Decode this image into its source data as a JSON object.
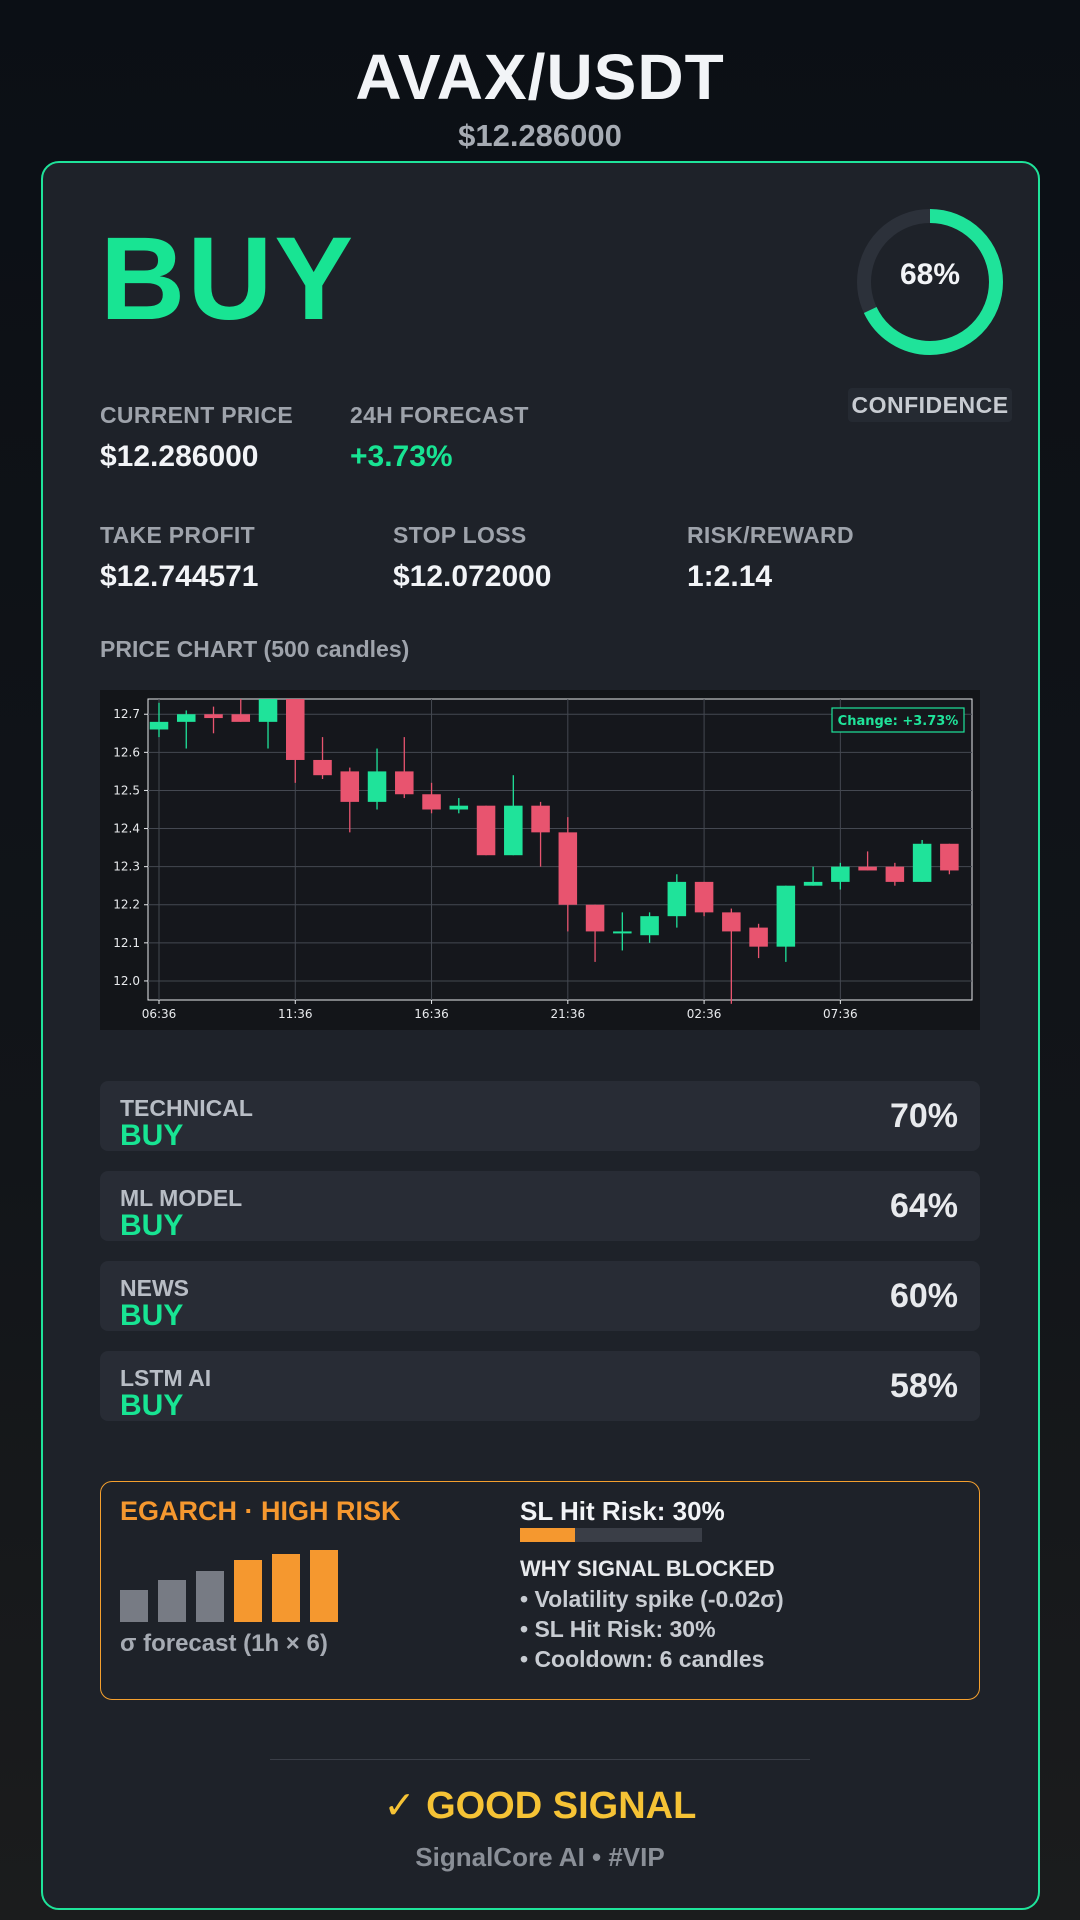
{
  "header": {
    "pair": "AVAX/USDT",
    "price": "$12.286000"
  },
  "signal": {
    "action": "BUY",
    "confidence_pct": 68,
    "confidence_text": "68%",
    "confidence_label": "CONFIDENCE"
  },
  "stats": {
    "current_price": {
      "label": "CURRENT PRICE",
      "value": "$12.286000"
    },
    "forecast": {
      "label": "24H FORECAST",
      "value": "+3.73%"
    },
    "take_profit": {
      "label": "TAKE PROFIT",
      "value": "$12.744571"
    },
    "stop_loss": {
      "label": "STOP LOSS",
      "value": "$12.072000"
    },
    "risk_reward": {
      "label": "RISK/REWARD",
      "value": "1:2.14"
    }
  },
  "chart_title": "PRICE CHART (500 candles)",
  "chart_data": {
    "type": "candlestick",
    "annotation": "Change: +3.73%",
    "ylim": [
      11.95,
      12.74
    ],
    "y_ticks": [
      12.0,
      12.1,
      12.2,
      12.3,
      12.4,
      12.5,
      12.6,
      12.7
    ],
    "x_ticks": [
      "06:36",
      "11:36",
      "16:36",
      "21:36",
      "02:36",
      "07:36"
    ],
    "grid": true,
    "up_color": "#1fe39a",
    "down_color": "#e8546f",
    "candles": [
      {
        "o": 12.66,
        "h": 12.73,
        "l": 12.64,
        "c": 12.68
      },
      {
        "o": 12.68,
        "h": 12.71,
        "l": 12.61,
        "c": 12.7
      },
      {
        "o": 12.7,
        "h": 12.72,
        "l": 12.65,
        "c": 12.69
      },
      {
        "o": 12.7,
        "h": 12.74,
        "l": 12.68,
        "c": 12.68
      },
      {
        "o": 12.68,
        "h": 12.74,
        "l": 12.61,
        "c": 12.74
      },
      {
        "o": 12.74,
        "h": 12.74,
        "l": 12.52,
        "c": 12.58
      },
      {
        "o": 12.58,
        "h": 12.64,
        "l": 12.53,
        "c": 12.54
      },
      {
        "o": 12.55,
        "h": 12.56,
        "l": 12.39,
        "c": 12.47
      },
      {
        "o": 12.47,
        "h": 12.61,
        "l": 12.45,
        "c": 12.55
      },
      {
        "o": 12.55,
        "h": 12.64,
        "l": 12.48,
        "c": 12.49
      },
      {
        "o": 12.49,
        "h": 12.52,
        "l": 12.44,
        "c": 12.45
      },
      {
        "o": 12.45,
        "h": 12.48,
        "l": 12.44,
        "c": 12.46
      },
      {
        "o": 12.46,
        "h": 12.46,
        "l": 12.33,
        "c": 12.33
      },
      {
        "o": 12.33,
        "h": 12.54,
        "l": 12.33,
        "c": 12.46
      },
      {
        "o": 12.46,
        "h": 12.47,
        "l": 12.3,
        "c": 12.39
      },
      {
        "o": 12.39,
        "h": 12.43,
        "l": 12.13,
        "c": 12.2
      },
      {
        "o": 12.2,
        "h": 12.2,
        "l": 12.05,
        "c": 12.13
      },
      {
        "o": 12.13,
        "h": 12.18,
        "l": 12.08,
        "c": 12.13
      },
      {
        "o": 12.12,
        "h": 12.18,
        "l": 12.1,
        "c": 12.17
      },
      {
        "o": 12.17,
        "h": 12.28,
        "l": 12.14,
        "c": 12.26
      },
      {
        "o": 12.26,
        "h": 12.26,
        "l": 12.17,
        "c": 12.18
      },
      {
        "o": 12.18,
        "h": 12.19,
        "l": 11.94,
        "c": 12.13
      },
      {
        "o": 12.14,
        "h": 12.15,
        "l": 12.06,
        "c": 12.09
      },
      {
        "o": 12.09,
        "h": 12.25,
        "l": 12.05,
        "c": 12.25
      },
      {
        "o": 12.25,
        "h": 12.3,
        "l": 12.25,
        "c": 12.26
      },
      {
        "o": 12.26,
        "h": 12.31,
        "l": 12.24,
        "c": 12.3
      },
      {
        "o": 12.3,
        "h": 12.34,
        "l": 12.29,
        "c": 12.29
      },
      {
        "o": 12.3,
        "h": 12.31,
        "l": 12.25,
        "c": 12.26
      },
      {
        "o": 12.26,
        "h": 12.37,
        "l": 12.26,
        "c": 12.36
      },
      {
        "o": 12.36,
        "h": 12.36,
        "l": 12.28,
        "c": 12.29
      }
    ]
  },
  "sources": [
    {
      "name": "TECHNICAL",
      "signal": "BUY",
      "pct": "70%"
    },
    {
      "name": "ML MODEL",
      "signal": "BUY",
      "pct": "64%"
    },
    {
      "name": "NEWS",
      "signal": "BUY",
      "pct": "60%"
    },
    {
      "name": "LSTM AI",
      "signal": "BUY",
      "pct": "58%"
    }
  ],
  "risk": {
    "title": "EGARCH · HIGH RISK",
    "sigma_bars": [
      0.45,
      0.59,
      0.71,
      0.86,
      0.95,
      1.0
    ],
    "sigma_high_from": 3,
    "sigma_label": "σ forecast (1h × 6)",
    "sl_hit_text": "SL Hit Risk: 30%",
    "sl_hit_pct": 30,
    "why_title": "WHY SIGNAL BLOCKED",
    "why_items": [
      "• Volatility spike (-0.02σ)",
      "• SL Hit Risk: 30%",
      "• Cooldown: 6 candles"
    ]
  },
  "verdict": {
    "icon": "check-icon",
    "text": "✓ GOOD SIGNAL"
  },
  "footer": "SignalCore AI • #VIP"
}
